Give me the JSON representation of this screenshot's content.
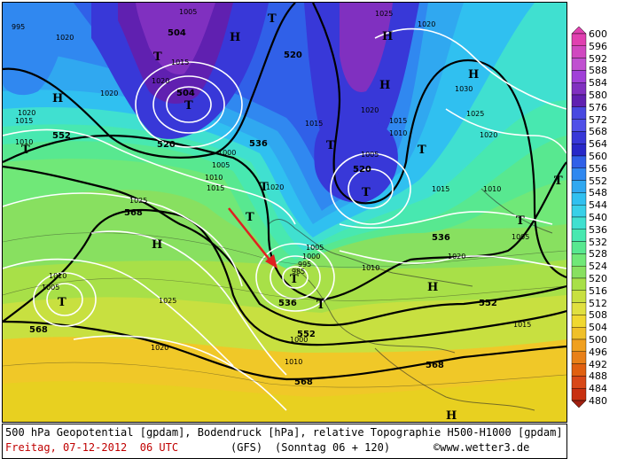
{
  "caption": {
    "line1": "500 hPa Geopotential [gpdam], Bodendruck [hPa], relative Topographie H500-H1000 [gpdam]",
    "date": "Freitag, 07-12-2012  06 UTC",
    "model": "(GFS)",
    "run": "(Sonntag 06 + 120)",
    "copyright": "©www.wetter3.de"
  },
  "legend": {
    "levels": [
      "600",
      "596",
      "592",
      "588",
      "584",
      "580",
      "576",
      "572",
      "568",
      "564",
      "560",
      "556",
      "552",
      "548",
      "544",
      "540",
      "536",
      "532",
      "528",
      "524",
      "520",
      "516",
      "512",
      "508",
      "504",
      "500",
      "496",
      "492",
      "488",
      "484",
      "480"
    ],
    "colors": [
      "#e040b0",
      "#d048c0",
      "#c050d0",
      "#a040d8",
      "#8030c0",
      "#6020b0",
      "#4848e0",
      "#5050e8",
      "#3838d8",
      "#2828c8",
      "#3060e8",
      "#3088f0",
      "#30a8f0",
      "#30c0f0",
      "#38d0e8",
      "#40e0d0",
      "#48e8b0",
      "#58e890",
      "#70e878",
      "#88e060",
      "#a8e048",
      "#c8e040",
      "#e0e040",
      "#f0d830",
      "#f0c028",
      "#f0a020",
      "#e88018",
      "#e06010",
      "#d84818",
      "#c83010",
      "#a02010"
    ]
  },
  "map_labels": {
    "geopotential": [
      "504",
      "520",
      "536",
      "552",
      "568",
      "552",
      "536",
      "520",
      "504",
      "568",
      "568",
      "536",
      "552",
      "568",
      "552"
    ],
    "pressure": [
      "1005",
      "1010",
      "1015",
      "1020",
      "1025",
      "1030",
      "1000",
      "995",
      "1005",
      "1010",
      "1015",
      "1020",
      "1025"
    ],
    "highs": [
      "H",
      "H",
      "H",
      "H",
      "H",
      "H",
      "H",
      "H"
    ],
    "lows": [
      "T",
      "T",
      "T",
      "T",
      "T",
      "T",
      "T",
      "T",
      "T",
      "T",
      "T",
      "T",
      "T",
      "T"
    ]
  }
}
